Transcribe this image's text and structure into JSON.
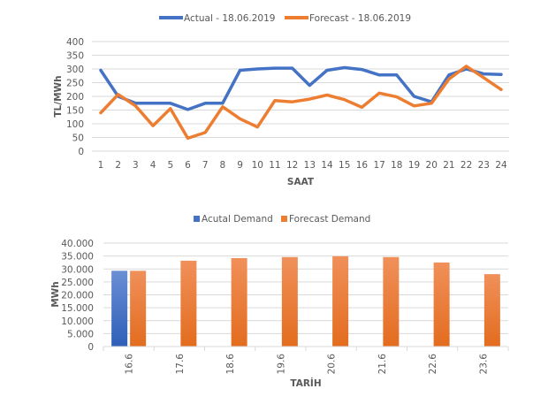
{
  "colors": {
    "actual": "#4472c4",
    "forecast": "#ed7d31",
    "grid": "#d9d9d9",
    "text": "#595959"
  },
  "chart_data": [
    {
      "type": "line",
      "title": "",
      "xlabel": "SAAT",
      "ylabel": "TL/MWh",
      "ylim": [
        0,
        400
      ],
      "yticks": [
        0,
        50,
        100,
        150,
        200,
        250,
        300,
        350,
        400
      ],
      "ytick_labels": [
        "0",
        "50",
        "100",
        "150",
        "200",
        "250",
        "300",
        "350",
        "400"
      ],
      "grid": true,
      "legend": "top",
      "x": [
        "1",
        "2",
        "3",
        "4",
        "5",
        "6",
        "7",
        "8",
        "9",
        "10",
        "11",
        "12",
        "13",
        "14",
        "15",
        "16",
        "17",
        "18",
        "19",
        "20",
        "21",
        "22",
        "23",
        "24"
      ],
      "series": [
        {
          "name": "Actual - 18.06.2019",
          "color": "#4472c4",
          "values": [
            295,
            200,
            175,
            175,
            175,
            152,
            175,
            175,
            295,
            300,
            303,
            303,
            240,
            295,
            305,
            298,
            278,
            278,
            200,
            180,
            278,
            300,
            282,
            280
          ]
        },
        {
          "name": "Forecast - 18.06.2019",
          "color": "#ed7d31",
          "values": [
            140,
            207,
            165,
            93,
            155,
            47,
            68,
            162,
            118,
            88,
            185,
            180,
            190,
            205,
            188,
            160,
            212,
            198,
            165,
            175,
            263,
            310,
            268,
            225
          ]
        }
      ]
    },
    {
      "type": "bar",
      "title": "",
      "xlabel": "TARİH",
      "ylabel": "MWh",
      "ylim": [
        0,
        40000
      ],
      "yticks": [
        0,
        5000,
        10000,
        15000,
        20000,
        25000,
        30000,
        35000,
        40000
      ],
      "ytick_labels": [
        "0",
        "5.000",
        "10.000",
        "15.000",
        "20.000",
        "25.000",
        "30.000",
        "35.000",
        "40.000"
      ],
      "grid": true,
      "legend": "top",
      "categories": [
        "16.6",
        "17.6",
        "18.6",
        "19.6",
        "20.6",
        "21.6",
        "22.6",
        "23.6"
      ],
      "series": [
        {
          "name": "Acutal Demand",
          "color": "#4472c4",
          "values": [
            29300,
            null,
            null,
            null,
            null,
            null,
            null,
            null
          ]
        },
        {
          "name": "Forecast Demand",
          "color": "#ed7d31",
          "values": [
            29300,
            33200,
            34200,
            34600,
            34900,
            34600,
            32500,
            28000
          ]
        }
      ]
    }
  ]
}
